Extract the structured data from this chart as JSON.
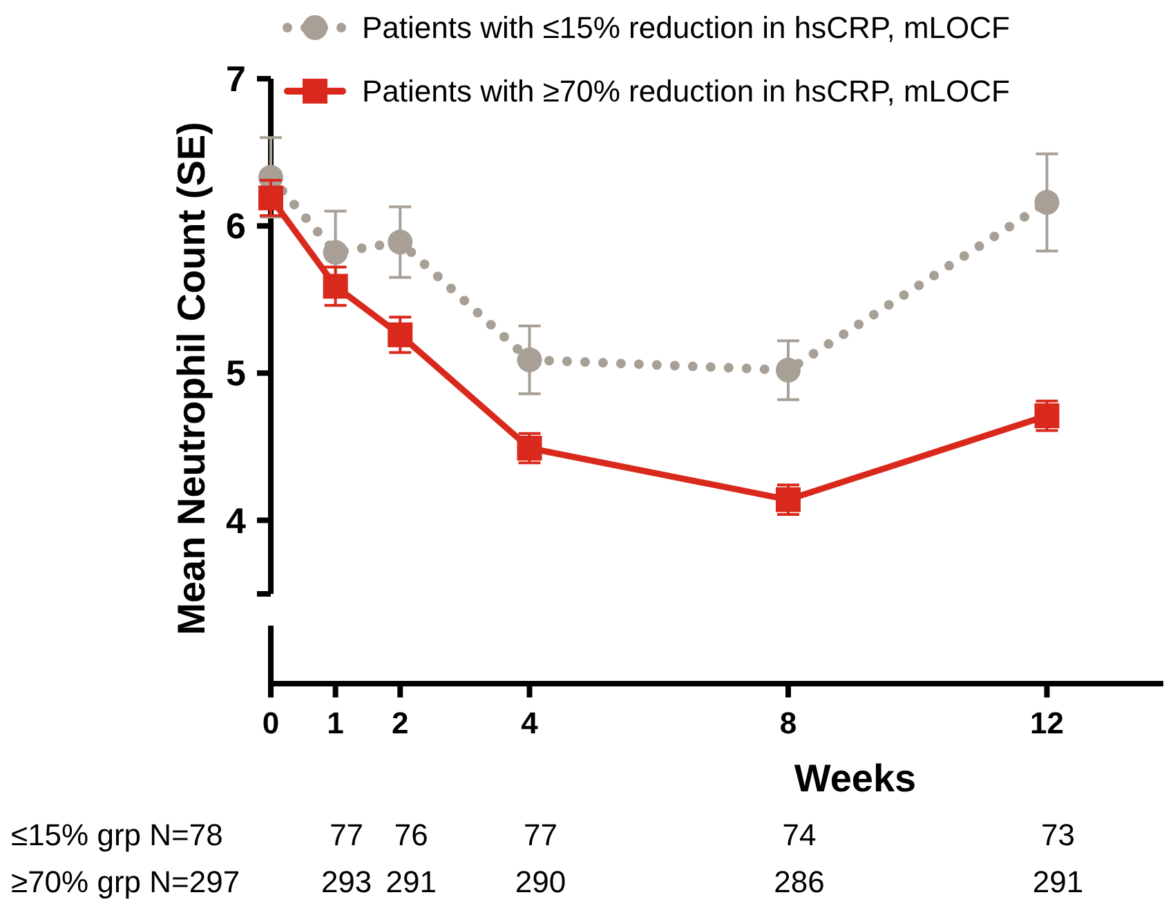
{
  "chart_data": {
    "type": "line",
    "xlabel": "Weeks",
    "ylabel": "Mean Neutrophil Count (SE)",
    "x": [
      0,
      1,
      2,
      4,
      8,
      12
    ],
    "xlim": [
      0,
      13.8
    ],
    "xticks": [
      0,
      1,
      2,
      4,
      8,
      12
    ],
    "ylim": [
      3.5,
      7
    ],
    "yticks": [
      4,
      5,
      6,
      7
    ],
    "series": [
      {
        "name": "Patients with ≤15% reduction in hsCRP, mLOCF",
        "color": "#a89f96",
        "marker": "circle",
        "line_style": "dotted",
        "values": [
          6.33,
          5.82,
          5.89,
          5.09,
          5.02,
          6.16
        ],
        "errors": [
          0.27,
          0.28,
          0.24,
          0.23,
          0.2,
          0.33
        ]
      },
      {
        "name": "Patients with ≥70% reduction in hsCRP, mLOCF",
        "color": "#d9291c",
        "marker": "square",
        "line_style": "solid",
        "values": [
          6.19,
          5.59,
          5.26,
          4.49,
          4.14,
          4.71
        ],
        "errors": [
          0.12,
          0.13,
          0.12,
          0.1,
          0.1,
          0.1
        ]
      }
    ],
    "legend": "top",
    "annotations": [
      "≤15% grp N=78",
      "77",
      "76",
      "77",
      "74",
      "73",
      "≥70% grp N=297",
      "293",
      "291",
      "290",
      "286",
      "291"
    ]
  }
}
